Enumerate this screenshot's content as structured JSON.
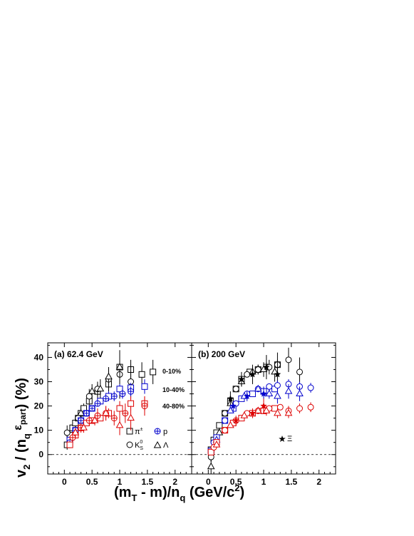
{
  "chart_data": {
    "type": "scatter",
    "xlabel_parts": {
      "a": "(m",
      "b": "T",
      "c": " - m)/n",
      "d": "q",
      "e": " (GeV/c",
      "f": "2",
      "g": ")"
    },
    "ylabel_parts": {
      "a": "v",
      "b": "2",
      "c": " / (n",
      "d": "q",
      "e": " ε",
      "f": "part",
      "g": ") (%)"
    },
    "xlim": [
      -0.3,
      2.3
    ],
    "ylim": [
      -8,
      46
    ],
    "x_ticks": [
      "0",
      "0.5",
      "1",
      "1.5",
      "2"
    ],
    "y_ticks": [
      "0",
      "10",
      "20",
      "30",
      "40"
    ],
    "colors": {
      "0-10%": "#000000",
      "10-40%": "#0000cc",
      "40-80%": "#dd0000"
    },
    "panels": [
      {
        "id": "a",
        "title": "(a) 62.4 GeV",
        "centrality_labels": [
          "0-10%",
          "10-40%",
          "40-80%"
        ],
        "legend": [
          {
            "label_main": "π",
            "label_sup": "±",
            "label_sub": "",
            "marker": "square"
          },
          {
            "label_main": "p",
            "label_sup": "",
            "label_sub": "",
            "marker": "cross-circle"
          },
          {
            "label_main": "K",
            "label_sup": "0",
            "label_sub": "S",
            "marker": "circle"
          },
          {
            "label_main": "Λ",
            "label_sup": "",
            "label_sub": "",
            "marker": "triangle"
          }
        ],
        "series": [
          {
            "name": "π± 0-10%",
            "marker": "square",
            "centrality": "0-10%",
            "points": [
              [
                0.05,
                4,
                2
              ],
              [
                0.1,
                8,
                2
              ],
              [
                0.15,
                11,
                2
              ],
              [
                0.2,
                13,
                2
              ],
              [
                0.25,
                15,
                2
              ],
              [
                0.3,
                17,
                2
              ],
              [
                0.35,
                19,
                2
              ],
              [
                0.45,
                22,
                2
              ],
              [
                0.6,
                26,
                3
              ],
              [
                0.8,
                29,
                3
              ],
              [
                1.0,
                36,
                6
              ],
              [
                1.2,
                35,
                4
              ],
              [
                1.4,
                33,
                5
              ],
              [
                1.6,
                34,
                5
              ]
            ]
          },
          {
            "name": "K0S 0-10%",
            "marker": "circle",
            "centrality": "0-10%",
            "points": [
              [
                0.05,
                9,
                3
              ],
              [
                0.25,
                15,
                2
              ],
              [
                0.45,
                24,
                3
              ],
              [
                0.6,
                27,
                3
              ],
              [
                0.8,
                31,
                5
              ],
              [
                1.0,
                33,
                10
              ],
              [
                1.2,
                30,
                7
              ]
            ]
          },
          {
            "name": "Λ 0-10%",
            "marker": "triangle",
            "centrality": "0-10%",
            "points": [
              [
                0.3,
                17,
                3
              ],
              [
                0.5,
                26,
                3
              ],
              [
                0.65,
                27,
                4
              ],
              [
                0.8,
                32,
                4
              ],
              [
                1.0,
                36,
                5
              ]
            ]
          },
          {
            "name": "π± 10-40%",
            "marker": "square",
            "centrality": "10-40%",
            "points": [
              [
                0.1,
                6,
                1
              ],
              [
                0.2,
                10,
                1
              ],
              [
                0.3,
                14,
                1
              ],
              [
                0.4,
                17,
                1
              ],
              [
                0.5,
                19,
                1
              ],
              [
                0.65,
                22,
                1
              ],
              [
                0.8,
                24,
                2
              ],
              [
                1.0,
                27,
                2
              ],
              [
                1.2,
                27.5,
                2
              ],
              [
                1.45,
                28,
                3
              ]
            ]
          },
          {
            "name": "p 10-40%",
            "marker": "cross-circle",
            "centrality": "10-40%",
            "points": [
              [
                0.1,
                5,
                1
              ],
              [
                0.2,
                10,
                1
              ],
              [
                0.3,
                14,
                1
              ],
              [
                0.4,
                17,
                1
              ],
              [
                0.5,
                19,
                1
              ],
              [
                0.6,
                21,
                1
              ],
              [
                0.75,
                23,
                1
              ],
              [
                0.9,
                24,
                2
              ],
              [
                1.05,
                25,
                2
              ],
              [
                1.2,
                26,
                2
              ]
            ]
          },
          {
            "name": "π± 40-80%",
            "marker": "square",
            "centrality": "40-80%",
            "points": [
              [
                0.1,
                4,
                1
              ],
              [
                0.2,
                8,
                1
              ],
              [
                0.3,
                11,
                1
              ],
              [
                0.4,
                13,
                1
              ],
              [
                0.5,
                14,
                1
              ],
              [
                0.65,
                15,
                1
              ],
              [
                0.8,
                17,
                2
              ],
              [
                1.0,
                19,
                3
              ],
              [
                1.2,
                21,
                3
              ],
              [
                1.45,
                21,
                3
              ]
            ]
          },
          {
            "name": "p 40-80%",
            "marker": "cross-circle",
            "centrality": "40-80%",
            "points": [
              [
                0.15,
                7,
                2
              ],
              [
                0.3,
                11,
                2
              ],
              [
                0.45,
                14,
                2
              ],
              [
                0.6,
                16,
                3
              ],
              [
                0.75,
                17,
                3
              ],
              [
                0.9,
                15,
                3
              ],
              [
                1.1,
                17,
                4
              ],
              [
                1.45,
                20,
                4
              ]
            ]
          },
          {
            "name": "Λ 40-80%",
            "marker": "triangle",
            "centrality": "40-80%",
            "points": [
              [
                0.2,
                9,
                2
              ],
              [
                0.35,
                11,
                2
              ],
              [
                0.55,
                14,
                2
              ],
              [
                0.75,
                17,
                3
              ],
              [
                1.0,
                12,
                4
              ],
              [
                1.2,
                15,
                5
              ]
            ]
          }
        ]
      },
      {
        "id": "b",
        "title": "(b) 200 GeV",
        "legend": [
          {
            "label_main": "Ξ",
            "label_sup": "",
            "label_sub": "",
            "marker": "star"
          }
        ],
        "series": [
          {
            "name": "π± 0-10%",
            "marker": "square",
            "centrality": "0-10%",
            "points": [
              [
                0.05,
                2,
                1
              ],
              [
                0.1,
                6,
                1
              ],
              [
                0.15,
                9,
                1
              ],
              [
                0.2,
                12,
                1
              ],
              [
                0.3,
                17,
                1
              ],
              [
                0.4,
                22,
                1
              ],
              [
                0.5,
                27,
                1
              ],
              [
                0.6,
                31,
                1
              ],
              [
                0.75,
                34,
                1
              ],
              [
                0.9,
                35,
                2
              ],
              [
                1.05,
                36,
                2
              ],
              [
                1.25,
                37,
                2
              ]
            ]
          },
          {
            "name": "K0S 0-10%",
            "marker": "circle",
            "centrality": "0-10%",
            "points": [
              [
                0.05,
                -1,
                2
              ],
              [
                0.15,
                7,
                1
              ],
              [
                0.3,
                17,
                1
              ],
              [
                0.5,
                27,
                1
              ],
              [
                0.7,
                33,
                1
              ],
              [
                0.9,
                35,
                2
              ],
              [
                1.1,
                36,
                3
              ],
              [
                1.25,
                37,
                5
              ],
              [
                1.45,
                39,
                5
              ],
              [
                1.65,
                34,
                6
              ]
            ]
          },
          {
            "name": "Λ 0-10%",
            "marker": "triangle",
            "centrality": "0-10%",
            "points": [
              [
                0.05,
                -5,
                3
              ],
              [
                0.2,
                9,
                2
              ],
              [
                0.4,
                21,
                2
              ],
              [
                0.6,
                30,
                2
              ],
              [
                0.8,
                34,
                2
              ],
              [
                1.0,
                35,
                3
              ],
              [
                1.2,
                34,
                4
              ]
            ]
          },
          {
            "name": "Ξ 0-10%",
            "marker": "star",
            "centrality": "0-10%",
            "points": [
              [
                0.4,
                23,
                3
              ],
              [
                0.6,
                31,
                3
              ],
              [
                0.8,
                33,
                4
              ],
              [
                1.05,
                36,
                5
              ],
              [
                1.25,
                33,
                6
              ]
            ]
          },
          {
            "name": "π± 10-40%",
            "marker": "square",
            "centrality": "10-40%",
            "points": [
              [
                0.05,
                1.5,
                1
              ],
              [
                0.15,
                7,
                1
              ],
              [
                0.3,
                14,
                1
              ],
              [
                0.45,
                19,
                1
              ],
              [
                0.6,
                23,
                1
              ],
              [
                0.8,
                25,
                1
              ],
              [
                1.0,
                26,
                1
              ],
              [
                1.2,
                27,
                1
              ]
            ]
          },
          {
            "name": "K0S 10-40%",
            "marker": "circle",
            "centrality": "10-40%",
            "points": [
              [
                0.1,
                5,
                1
              ],
              [
                0.3,
                14,
                1
              ],
              [
                0.5,
                21,
                1
              ],
              [
                0.7,
                25,
                1
              ],
              [
                0.9,
                27,
                1
              ],
              [
                1.1,
                28,
                1
              ],
              [
                1.25,
                28.5,
                2
              ],
              [
                1.45,
                29,
                2
              ],
              [
                1.65,
                28,
                2
              ],
              [
                1.85,
                27.5,
                2
              ]
            ]
          },
          {
            "name": "Λ 10-40%",
            "marker": "triangle",
            "centrality": "10-40%",
            "points": [
              [
                0.15,
                6,
                1
              ],
              [
                0.4,
                18,
                1
              ],
              [
                0.65,
                24,
                1
              ],
              [
                0.9,
                27,
                1
              ],
              [
                1.1,
                25,
                2
              ],
              [
                1.25,
                24,
                3
              ],
              [
                1.45,
                26,
                3
              ],
              [
                1.65,
                25,
                3
              ]
            ]
          },
          {
            "name": "Ξ 10-40%",
            "marker": "star",
            "centrality": "10-40%",
            "points": [
              [
                0.45,
                20,
                2
              ],
              [
                0.7,
                24,
                2
              ],
              [
                1.0,
                25,
                3
              ]
            ]
          },
          {
            "name": "π± 40-80%",
            "marker": "square",
            "centrality": "40-80%",
            "points": [
              [
                0.05,
                1,
                1
              ],
              [
                0.15,
                5,
                1
              ],
              [
                0.3,
                10,
                1
              ],
              [
                0.45,
                13,
                1
              ],
              [
                0.6,
                15,
                1
              ],
              [
                0.8,
                17,
                1
              ],
              [
                1.0,
                18,
                1
              ],
              [
                1.2,
                19,
                1
              ]
            ]
          },
          {
            "name": "K0S 40-80%",
            "marker": "circle",
            "centrality": "40-80%",
            "points": [
              [
                0.1,
                3,
                1
              ],
              [
                0.3,
                10,
                1
              ],
              [
                0.5,
                14,
                1
              ],
              [
                0.7,
                17,
                1
              ],
              [
                0.9,
                18,
                1
              ],
              [
                1.1,
                19,
                1
              ],
              [
                1.3,
                19.5,
                1
              ],
              [
                1.45,
                18,
                2
              ],
              [
                1.65,
                19,
                2
              ],
              [
                1.85,
                19.5,
                2
              ]
            ]
          },
          {
            "name": "Λ 40-80%",
            "marker": "triangle",
            "centrality": "40-80%",
            "points": [
              [
                0.15,
                4,
                1
              ],
              [
                0.4,
                12,
                1
              ],
              [
                0.65,
                16,
                1
              ],
              [
                0.9,
                18,
                1
              ],
              [
                1.05,
                18,
                2
              ],
              [
                1.25,
                17,
                2
              ],
              [
                1.45,
                17,
                2
              ]
            ]
          },
          {
            "name": "Ξ 40-80%",
            "marker": "star",
            "centrality": "40-80%",
            "points": [
              [
                0.5,
                14,
                2
              ],
              [
                0.8,
                17,
                2
              ],
              [
                1.0,
                20,
                3
              ]
            ]
          }
        ]
      }
    ]
  }
}
